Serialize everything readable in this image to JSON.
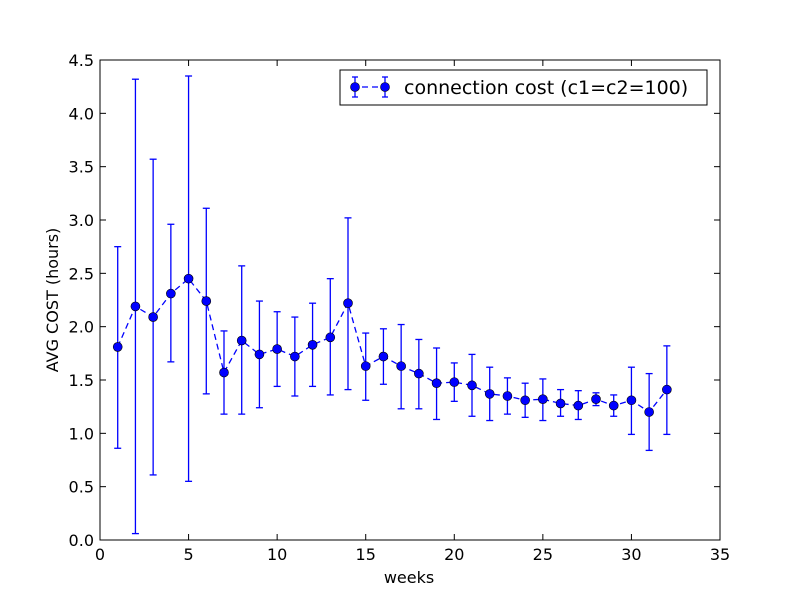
{
  "chart_data": {
    "type": "line",
    "title": "",
    "xlabel": "weeks",
    "ylabel": "AVG COST (hours)",
    "xlim": [
      0,
      35
    ],
    "ylim": [
      0,
      4.5
    ],
    "xticks": [
      0,
      5,
      10,
      15,
      20,
      25,
      30,
      35
    ],
    "yticks": [
      0.0,
      0.5,
      1.0,
      1.5,
      2.0,
      2.5,
      3.0,
      3.5,
      4.0,
      4.5
    ],
    "xtick_labels": [
      "0",
      "5",
      "10",
      "15",
      "20",
      "25",
      "30",
      "35"
    ],
    "ytick_labels": [
      "0.0",
      "0.5",
      "1.0",
      "1.5",
      "2.0",
      "2.5",
      "3.0",
      "3.5",
      "4.0",
      "4.5"
    ],
    "grid": false,
    "legend_position": "top-right",
    "series": [
      {
        "name": "connection cost (c1=c2=100)",
        "color": "#0000ff",
        "line_style": "dashed",
        "marker": "circle",
        "x": [
          1,
          2,
          3,
          4,
          5,
          6,
          7,
          8,
          9,
          10,
          11,
          12,
          13,
          14,
          15,
          16,
          17,
          18,
          19,
          20,
          21,
          22,
          23,
          24,
          25,
          26,
          27,
          28,
          29,
          30,
          31,
          32
        ],
        "y": [
          1.81,
          2.19,
          2.09,
          2.31,
          2.45,
          2.24,
          1.57,
          1.87,
          1.74,
          1.79,
          1.72,
          1.83,
          1.9,
          2.22,
          1.63,
          1.72,
          1.63,
          1.56,
          1.47,
          1.48,
          1.45,
          1.37,
          1.35,
          1.31,
          1.32,
          1.28,
          1.26,
          1.32,
          1.26,
          1.31,
          1.2,
          1.41
        ],
        "y_lower": [
          0.86,
          0.06,
          0.61,
          1.67,
          0.55,
          1.37,
          1.18,
          1.18,
          1.24,
          1.44,
          1.35,
          1.44,
          1.36,
          1.41,
          1.31,
          1.46,
          1.23,
          1.23,
          1.13,
          1.3,
          1.16,
          1.12,
          1.18,
          1.15,
          1.12,
          1.16,
          1.13,
          1.26,
          1.16,
          0.99,
          0.84,
          0.99
        ],
        "y_upper": [
          2.75,
          4.32,
          3.57,
          2.96,
          4.35,
          3.11,
          1.96,
          2.57,
          2.24,
          2.14,
          2.09,
          2.22,
          2.45,
          3.02,
          1.94,
          1.98,
          2.02,
          1.88,
          1.8,
          1.66,
          1.74,
          1.62,
          1.52,
          1.47,
          1.51,
          1.41,
          1.4,
          1.38,
          1.36,
          1.62,
          1.56,
          1.82
        ]
      }
    ]
  }
}
